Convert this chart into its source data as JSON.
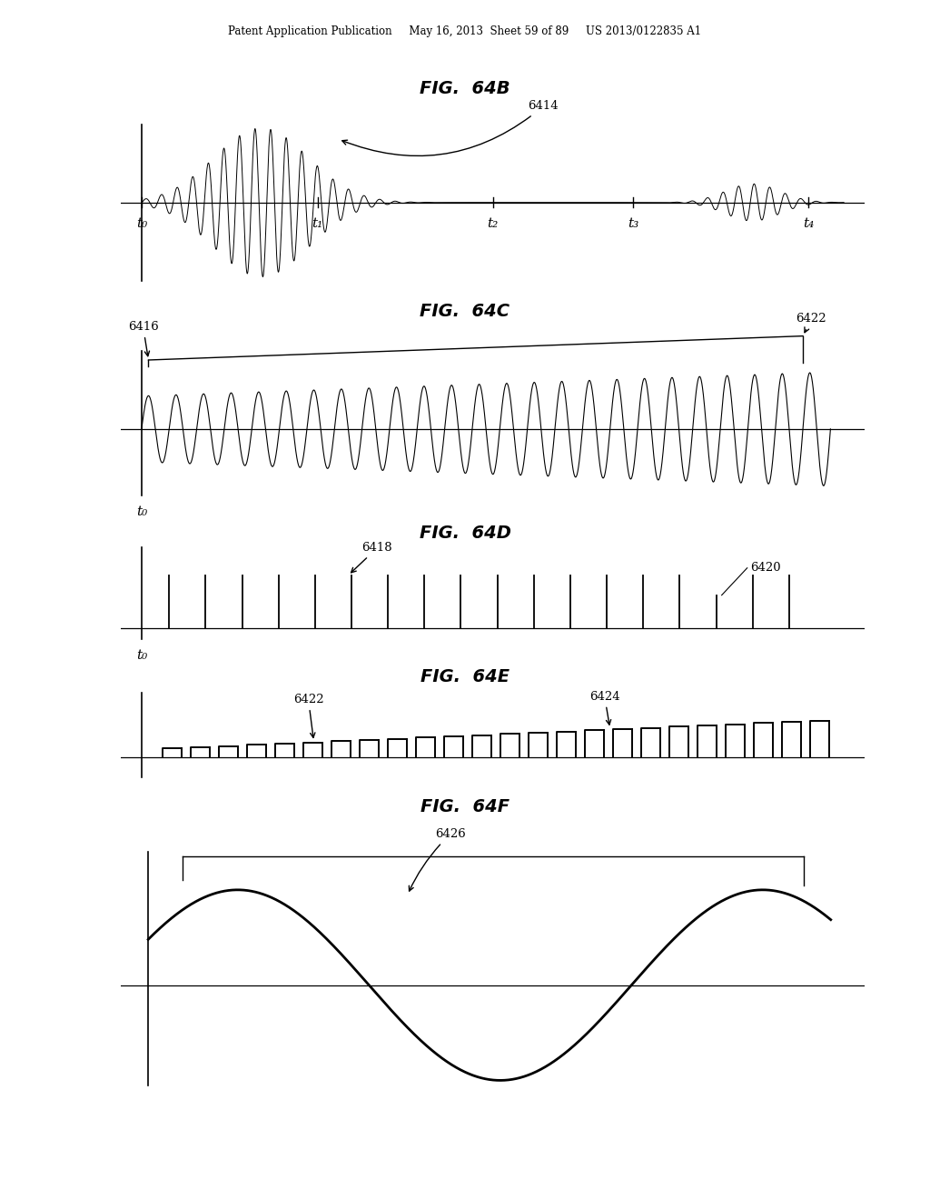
{
  "bg_color": "#ffffff",
  "text_color": "#000000",
  "header_text": "Patent Application Publication     May 16, 2013  Sheet 59 of 89     US 2013/0122835 A1",
  "fig64b_title": "FIG.  64B",
  "fig64c_title": "FIG.  64C",
  "fig64d_title": "FIG.  64D",
  "fig64e_title": "FIG.  64E",
  "fig64f_title": "FIG.  64F",
  "label_6414": "6414",
  "label_6416": "6416",
  "label_6418": "6418",
  "label_6420": "6420",
  "label_6422_c": "6422",
  "label_6422_e": "6422",
  "label_6424": "6424",
  "label_6426": "6426",
  "t0": "t₀",
  "t1": "t₁",
  "t2": "t₂",
  "t3": "t₃",
  "t4": "t₄"
}
